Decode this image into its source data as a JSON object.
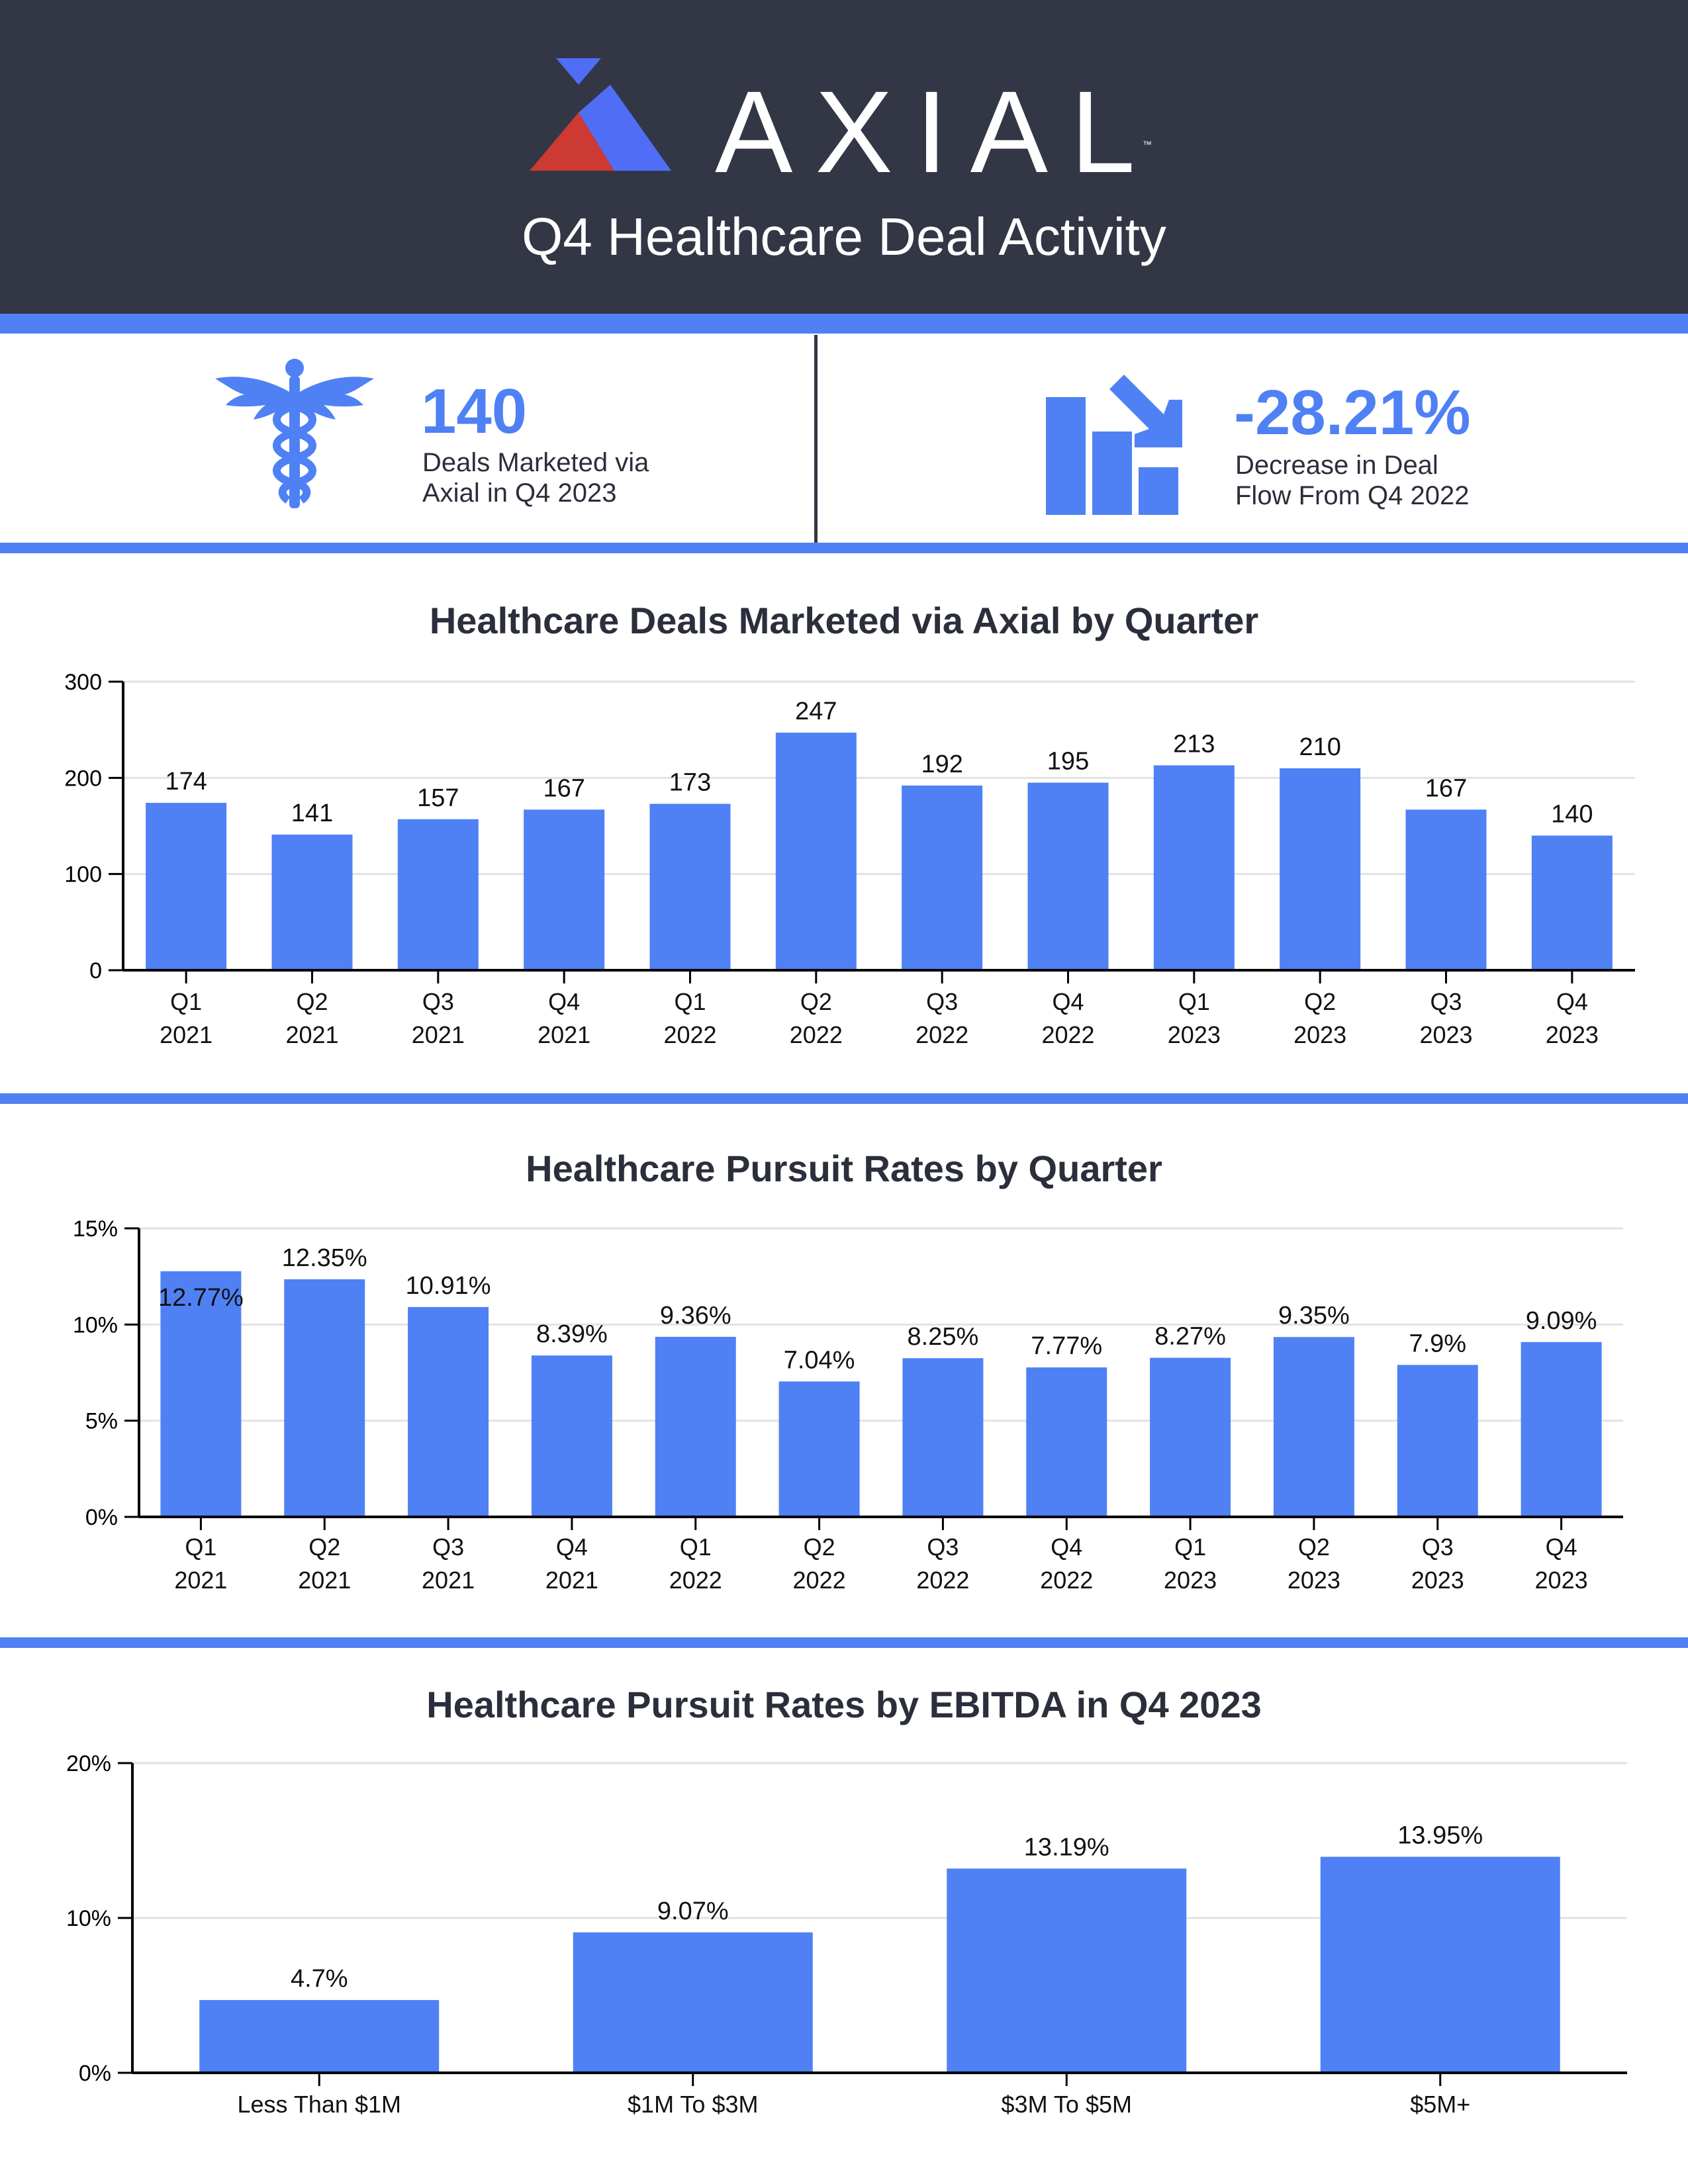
{
  "header": {
    "logo_text": "AXIAL",
    "logo_tm": "™",
    "title": "Q4 Healthcare Deal Activity"
  },
  "kpis": [
    {
      "icon": "caduceus-icon",
      "value": "140",
      "label_line1": "Deals Marketed via",
      "label_line2": "Axial in Q4 2023"
    },
    {
      "icon": "declining-bar-chart-icon",
      "value": "-28.21%",
      "label_line1": "Decrease in Deal",
      "label_line2": "Flow From Q4 2022"
    }
  ],
  "colors": {
    "bar": "#4f81f5",
    "header_bg": "#333645",
    "logo_red": "#cc3a33",
    "logo_blue": "#4f6ef5",
    "text": "#2b2e3b",
    "grid": "#e2e2e2"
  },
  "chart_data": [
    {
      "type": "bar",
      "title": "Healthcare Deals Marketed via Axial by Quarter",
      "categories": [
        [
          "Q1",
          "2021"
        ],
        [
          "Q2",
          "2021"
        ],
        [
          "Q3",
          "2021"
        ],
        [
          "Q4",
          "2021"
        ],
        [
          "Q1",
          "2022"
        ],
        [
          "Q2",
          "2022"
        ],
        [
          "Q3",
          "2022"
        ],
        [
          "Q4",
          "2022"
        ],
        [
          "Q1",
          "2023"
        ],
        [
          "Q2",
          "2023"
        ],
        [
          "Q3",
          "2023"
        ],
        [
          "Q4",
          "2023"
        ]
      ],
      "values": [
        174,
        141,
        157,
        167,
        173,
        247,
        192,
        195,
        213,
        210,
        167,
        140
      ],
      "data_labels": [
        "174",
        "141",
        "157",
        "167",
        "173",
        "247",
        "192",
        "195",
        "213",
        "210",
        "167",
        "140"
      ],
      "ylim": [
        0,
        300
      ],
      "yticks": [
        0,
        100,
        200,
        300
      ],
      "ytick_labels": [
        "0",
        "100",
        "200",
        "300"
      ],
      "grid": true
    },
    {
      "type": "bar",
      "title": "Healthcare Pursuit Rates by Quarter",
      "categories": [
        [
          "Q1",
          "2021"
        ],
        [
          "Q2",
          "2021"
        ],
        [
          "Q3",
          "2021"
        ],
        [
          "Q4",
          "2021"
        ],
        [
          "Q1",
          "2022"
        ],
        [
          "Q2",
          "2022"
        ],
        [
          "Q3",
          "2022"
        ],
        [
          "Q4",
          "2022"
        ],
        [
          "Q1",
          "2023"
        ],
        [
          "Q2",
          "2023"
        ],
        [
          "Q3",
          "2023"
        ],
        [
          "Q4",
          "2023"
        ]
      ],
      "values": [
        12.77,
        12.35,
        10.91,
        8.39,
        9.36,
        7.04,
        8.25,
        7.77,
        8.27,
        9.35,
        7.9,
        9.09
      ],
      "data_labels": [
        "12.77%",
        "12.35%",
        "10.91%",
        "8.39%",
        "9.36%",
        "7.04%",
        "8.25%",
        "7.77%",
        "8.27%",
        "9.35%",
        "7.9%",
        "9.09%"
      ],
      "ylim": [
        0,
        15
      ],
      "yticks": [
        0,
        5,
        10,
        15
      ],
      "ytick_labels": [
        "0%",
        "5%",
        "10%",
        "15%"
      ],
      "grid": true
    },
    {
      "type": "bar",
      "title": "Healthcare Pursuit Rates by EBITDA in Q4 2023",
      "categories": [
        [
          "Less Than $1M"
        ],
        [
          "$1M To $3M"
        ],
        [
          "$3M To $5M"
        ],
        [
          "$5M+"
        ]
      ],
      "values": [
        4.7,
        9.07,
        13.19,
        13.95
      ],
      "data_labels": [
        "4.7%",
        "9.07%",
        "13.19%",
        "13.95%"
      ],
      "ylim": [
        0,
        20
      ],
      "yticks": [
        0,
        10,
        20
      ],
      "ytick_labels": [
        "0%",
        "10%",
        "20%"
      ],
      "grid": true
    }
  ]
}
